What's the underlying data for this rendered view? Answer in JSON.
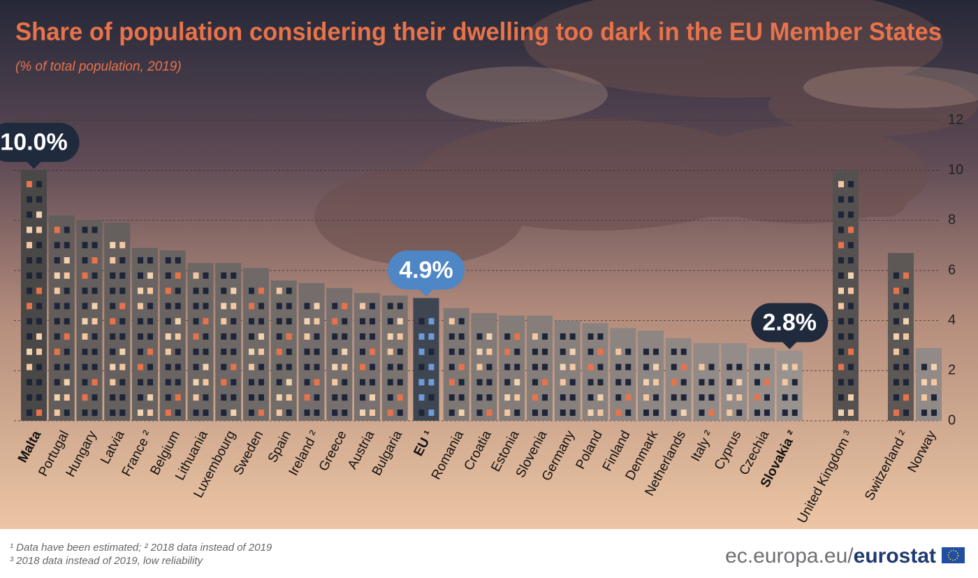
{
  "chart_data": {
    "type": "bar",
    "title": "Share of population considering their dwelling too dark in the EU Member States",
    "subtitle": "(% of total population, 2019)",
    "categories": [
      "Malta",
      "Portugal",
      "Hungary",
      "Latvia",
      "France ²",
      "Belgium",
      "Lithuania",
      "Luxembourg",
      "Sweden",
      "Spain",
      "Ireland ²",
      "Greece",
      "Austria",
      "Bulgaria",
      "EU ¹",
      "Romania",
      "Croatia",
      "Estonia",
      "Slovenia",
      "Germany",
      "Poland",
      "Finland",
      "Denmark",
      "Netherlands",
      "Italy ²",
      "Cyprus",
      "Czechia",
      "Slovakia ²",
      "United Kingdom ³",
      "Switzerland ²",
      "Norway"
    ],
    "values": [
      10.0,
      8.2,
      8.0,
      7.9,
      6.9,
      6.8,
      6.3,
      6.3,
      6.1,
      5.6,
      5.5,
      5.3,
      5.1,
      5.0,
      4.9,
      4.5,
      4.3,
      4.2,
      4.2,
      4.0,
      3.9,
      3.7,
      3.6,
      3.3,
      3.1,
      3.1,
      2.9,
      2.8,
      10.0,
      6.7,
      2.9
    ],
    "value_labels": [
      "10.0%",
      null,
      null,
      null,
      null,
      null,
      null,
      null,
      null,
      null,
      null,
      null,
      null,
      null,
      "4.9%",
      null,
      null,
      null,
      null,
      null,
      null,
      null,
      null,
      null,
      null,
      null,
      null,
      "2.8%",
      null,
      null,
      null
    ],
    "value_label_colors": [
      "#1f2a3d",
      null,
      null,
      null,
      null,
      null,
      null,
      null,
      null,
      null,
      null,
      null,
      null,
      null,
      "#4f86c6",
      null,
      null,
      null,
      null,
      null,
      null,
      null,
      null,
      null,
      null,
      null,
      null,
      "#1f2a3d",
      null,
      null,
      null
    ],
    "colors": [
      "#4a4747",
      "#625d5b",
      "#645f5d",
      "#655f5d",
      "#686260",
      "#696361",
      "#6c6664",
      "#6d6765",
      "#6f6967",
      "#726c69",
      "#746d6b",
      "#766f6d",
      "#78716f",
      "#7a7370",
      "#3e4652",
      "#7e7774",
      "#817a77",
      "#837c79",
      "#857e7b",
      "#88807d",
      "#8a827f",
      "#8c8481",
      "#8e8683",
      "#908885",
      "#928a87",
      "#948c89",
      "#968e8b",
      "#9a928e",
      "#555150",
      "#5d5856",
      "#918a86"
    ],
    "ylim": [
      0,
      12
    ],
    "yticks": [
      0,
      2,
      4,
      6,
      8,
      10,
      12
    ],
    "grid": true
  },
  "footnotes": [
    "¹ Data have been estimated; ² 2018 data instead of 2019",
    "³ 2018 data instead of 2019, low reliability"
  ],
  "source": [
    "ec.europa.eu/",
    "eurostat"
  ]
}
